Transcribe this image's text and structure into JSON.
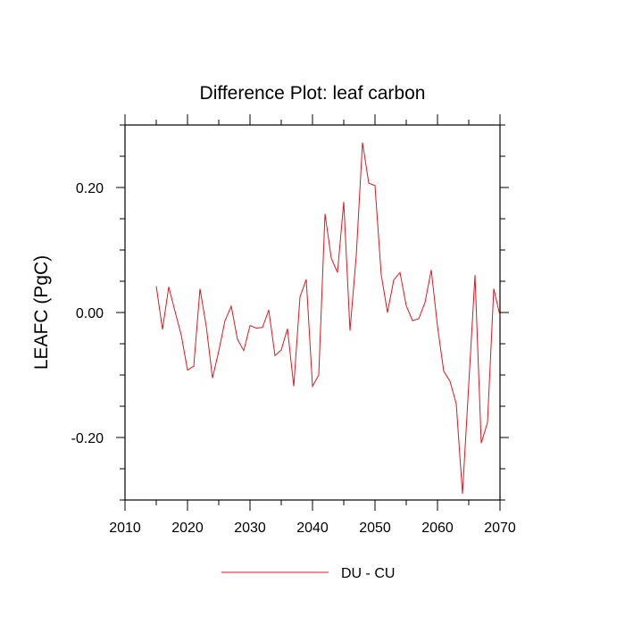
{
  "chart_data": {
    "type": "line",
    "title": "Difference Plot: leaf carbon",
    "xlabel": "",
    "ylabel": "LEAFC  (PgC)",
    "xlim": [
      2010,
      2070
    ],
    "ylim": [
      -0.3,
      0.3
    ],
    "x_ticks": [
      2010,
      2020,
      2030,
      2040,
      2050,
      2060,
      2070
    ],
    "x_tick_labels": [
      "2010",
      "2020",
      "2030",
      "2040",
      "2050",
      "2060",
      "2070"
    ],
    "y_ticks": [
      -0.2,
      0.0,
      0.2
    ],
    "y_tick_labels": [
      "-0.20",
      "0.00",
      "0.20"
    ],
    "grid": false,
    "legend_position": "bottom",
    "series": [
      {
        "name": "DU - CU",
        "color": "#e8141c",
        "x": [
          2015,
          2016,
          2017,
          2018,
          2019,
          2020,
          2021,
          2022,
          2023,
          2024,
          2025,
          2026,
          2027,
          2028,
          2029,
          2030,
          2031,
          2032,
          2033,
          2034,
          2035,
          2036,
          2037,
          2038,
          2039,
          2040,
          2041,
          2042,
          2043,
          2044,
          2045,
          2046,
          2047,
          2048,
          2049,
          2050,
          2051,
          2052,
          2053,
          2054,
          2055,
          2056,
          2057,
          2058,
          2059,
          2060,
          2061,
          2062,
          2063,
          2064,
          2065,
          2066,
          2067,
          2068,
          2069,
          2070
        ],
        "values": [
          0.042,
          -0.027,
          0.041,
          0.002,
          -0.036,
          -0.092,
          -0.086,
          0.038,
          -0.022,
          -0.105,
          -0.062,
          -0.013,
          0.01,
          -0.043,
          -0.061,
          -0.021,
          -0.025,
          -0.024,
          0.004,
          -0.069,
          -0.06,
          -0.026,
          -0.118,
          0.025,
          0.053,
          -0.118,
          -0.1,
          0.158,
          0.087,
          0.064,
          0.177,
          -0.029,
          0.091,
          0.272,
          0.207,
          0.203,
          0.06,
          0.0,
          0.052,
          0.064,
          0.011,
          -0.013,
          -0.01,
          0.016,
          0.068,
          -0.022,
          -0.094,
          -0.11,
          -0.146,
          -0.29,
          -0.115,
          0.06,
          -0.209,
          -0.176,
          0.038,
          -0.005
        ]
      }
    ]
  }
}
